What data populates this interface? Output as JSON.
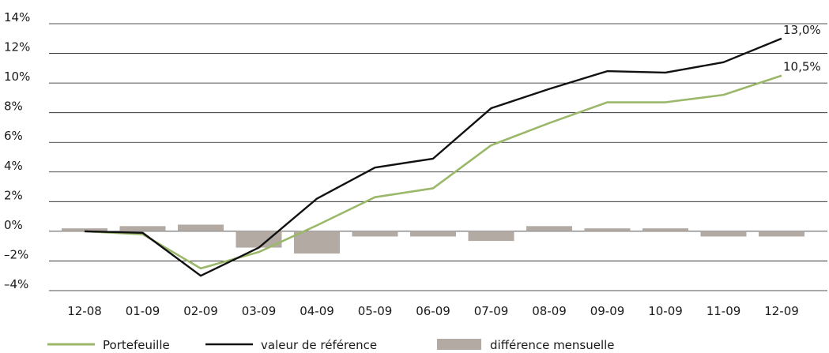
{
  "chart_data": {
    "type": "line",
    "categories": [
      "12-08",
      "01-09",
      "02-09",
      "03-09",
      "04-09",
      "05-09",
      "06-09",
      "07-09",
      "08-09",
      "09-09",
      "10-09",
      "11-09",
      "12-09"
    ],
    "ylim": [
      -4,
      14
    ],
    "yticks": [
      -4,
      -2,
      0,
      2,
      4,
      6,
      8,
      10,
      12,
      14
    ],
    "ytick_labels": [
      "–4%",
      "–2%",
      "0%",
      "2%",
      "4%",
      "6%",
      "8%",
      "10%",
      "12%",
      "14%"
    ],
    "grid": "horizontal",
    "legend_position": "bottom",
    "series": [
      {
        "name": "Portefeuille",
        "kind": "line",
        "color": "#9bb86a",
        "values": [
          0.0,
          -0.2,
          -2.5,
          -1.4,
          0.4,
          2.3,
          2.9,
          5.8,
          7.3,
          8.7,
          8.7,
          9.2,
          10.5
        ],
        "end_label": "10,5%"
      },
      {
        "name": "valeur de référence",
        "kind": "line",
        "color": "#111111",
        "values": [
          0.0,
          -0.1,
          -3.0,
          -1.1,
          2.2,
          4.3,
          4.9,
          8.3,
          9.6,
          10.8,
          10.7,
          11.4,
          13.0
        ],
        "end_label": "13,0%"
      },
      {
        "name": "différence mensuelle",
        "kind": "bar",
        "color": "#b3aaa3",
        "values": [
          0.2,
          0.35,
          0.45,
          -1.1,
          -1.5,
          -0.35,
          -0.35,
          -0.65,
          0.35,
          0.2,
          0.2,
          -0.35,
          -0.35
        ]
      }
    ]
  }
}
